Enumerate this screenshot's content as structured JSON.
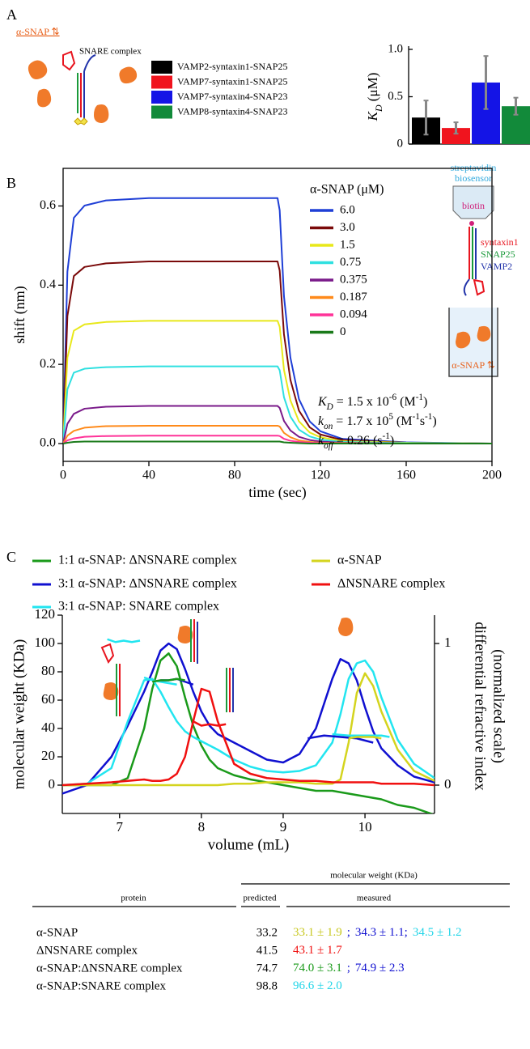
{
  "panels": [
    "A",
    "B",
    "C"
  ],
  "schematic_a": {
    "label": "α-SNAP ⇅",
    "complex": "SNARE complex"
  },
  "diagram_b": {
    "sensor": [
      "streptavidin",
      "biosensor"
    ],
    "biotin": "biotin",
    "proteins": [
      "syntaxin1",
      "SNAP25",
      "VAMP2"
    ],
    "protein_colors": [
      "#e8141e",
      "#1a9a3a",
      "#2233aa"
    ],
    "label": "α-SNAP ⇅"
  },
  "chart_data": [
    {
      "type": "bar",
      "y_label": [
        "K",
        "D",
        " (μM)"
      ],
      "categories": [
        null
      ],
      "series": [
        {
          "name": "VAMP2-syntaxin1-SNAP25",
          "color": "#000000",
          "values": [
            0.28
          ],
          "errors": [
            0.18
          ]
        },
        {
          "name": "VAMP7-syntaxin1-SNAP25",
          "color": "#f0141e",
          "values": [
            0.17
          ],
          "errors": [
            0.06
          ]
        },
        {
          "name": "VAMP7-syntaxin4-SNAP23",
          "color": "#1414e6",
          "values": [
            0.65
          ],
          "errors": [
            0.28
          ]
        },
        {
          "name": "VAMP8-syntaxin4-SNAP23",
          "color": "#128a3a",
          "values": [
            0.4
          ],
          "errors": [
            0.09
          ]
        }
      ],
      "error_color": "#888888",
      "ylim": [
        0,
        1.0
      ],
      "yticks": [
        0,
        0.5,
        {
          "value": 1.0,
          "label": "1.0"
        }
      ]
    },
    {
      "type": "line",
      "x_label": "time (sec)",
      "y_label": "shift (nm)",
      "legend_title": "α-SNAP (μM)",
      "x": [
        0,
        2,
        5,
        10,
        20,
        40,
        60,
        80,
        100,
        101,
        103,
        106,
        110,
        115,
        120,
        130,
        160,
        200
      ],
      "series": [
        {
          "name": "6.0",
          "color": "#1f3fd6",
          "values": [
            0,
            0.434,
            0.57,
            0.601,
            0.614,
            0.62,
            0.62,
            0.62,
            0.62,
            0.589,
            0.372,
            0.217,
            0.112,
            0.056,
            0.031,
            0.012,
            0.003,
            0
          ]
        },
        {
          "name": "3.0",
          "color": "#7a0a0a",
          "values": [
            0,
            0.322,
            0.423,
            0.446,
            0.455,
            0.46,
            0.46,
            0.46,
            0.46,
            0.437,
            0.276,
            0.161,
            0.083,
            0.041,
            0.023,
            0.009,
            0.002,
            0
          ]
        },
        {
          "name": "1.5",
          "color": "#e8e81a",
          "values": [
            0,
            0.217,
            0.285,
            0.301,
            0.307,
            0.31,
            0.31,
            0.31,
            0.31,
            0.295,
            0.186,
            0.109,
            0.056,
            0.028,
            0.016,
            0.006,
            0.002,
            0
          ]
        },
        {
          "name": "0.75",
          "color": "#2fe0e0",
          "values": [
            0,
            0.137,
            0.179,
            0.189,
            0.193,
            0.195,
            0.195,
            0.195,
            0.195,
            0.185,
            0.117,
            0.068,
            0.035,
            0.018,
            0.01,
            0.004,
            0.001,
            0
          ]
        },
        {
          "name": "0.375",
          "color": "#7a1a8a",
          "values": [
            0,
            0.05,
            0.075,
            0.088,
            0.093,
            0.095,
            0.095,
            0.095,
            0.095,
            0.09,
            0.057,
            0.033,
            0.017,
            0.009,
            0.005,
            0.002,
            0,
            0
          ]
        },
        {
          "name": "0.187",
          "color": "#ff8a1a",
          "values": [
            0,
            0.02,
            0.032,
            0.04,
            0.044,
            0.045,
            0.045,
            0.045,
            0.045,
            0.043,
            0.027,
            0.016,
            0.008,
            0.004,
            0.002,
            0.001,
            0,
            0
          ]
        },
        {
          "name": "0.094",
          "color": "#ff3399",
          "values": [
            0,
            0.008,
            0.013,
            0.017,
            0.019,
            0.02,
            0.02,
            0.02,
            0.02,
            0.019,
            0.012,
            0.007,
            0.004,
            0.002,
            0.001,
            0,
            0,
            0
          ]
        },
        {
          "name": "0",
          "color": "#1a7a1a",
          "values": [
            0,
            0.002,
            0.004,
            0.005,
            0.005,
            0.005,
            0.005,
            0.005,
            0.005,
            0.005,
            0.003,
            0.002,
            0.001,
            0,
            0,
            0,
            0,
            0
          ]
        }
      ],
      "annotations": [
        [
          "K",
          "D",
          " = 1.5 x 10",
          "-6",
          " (M",
          "-1",
          ")"
        ],
        [
          "k",
          "on",
          " = 1.7 x 10",
          "5",
          " (M",
          "-1",
          "s",
          "-1",
          ")"
        ],
        [
          "k",
          "off",
          " = 0.26 (s",
          "-1",
          ")"
        ]
      ],
      "xlim": [
        0,
        200
      ],
      "xticks": [
        0,
        40,
        80,
        120,
        160,
        200
      ],
      "ylim": [
        -0.045,
        0.695
      ],
      "yticks": [
        {
          "value": 0,
          "label": "0.0"
        },
        0.2,
        0.4,
        0.6
      ]
    },
    {
      "type": "line",
      "x_label": "volume (mL)",
      "y_label": "molecular weight (KDa)",
      "y2_label": [
        "differential refractive index",
        "(normalized scale)"
      ],
      "x": [
        6.3,
        6.6,
        6.9,
        7.1,
        7.3,
        7.4,
        7.5,
        7.6,
        7.7,
        7.8,
        7.9,
        8.0,
        8.1,
        8.2,
        8.4,
        8.6,
        8.8,
        9.0,
        9.2,
        9.4,
        9.6,
        9.7,
        9.8,
        9.9,
        10.0,
        10.1,
        10.2,
        10.4,
        10.6,
        10.85
      ],
      "series": [
        {
          "name": "1:1 α-SNAP: ΔNSNARE complex",
          "color": "#1a9a1a",
          "axis": "y2",
          "values": [
            0,
            0,
            0,
            0.05,
            0.4,
            0.68,
            0.88,
            0.93,
            0.84,
            0.62,
            0.42,
            0.28,
            0.18,
            0.12,
            0.07,
            0.04,
            0.02,
            0,
            -0.02,
            -0.04,
            -0.04,
            -0.05,
            -0.06,
            -0.07,
            -0.08,
            -0.09,
            -0.1,
            -0.14,
            -0.16,
            -0.21
          ]
        },
        {
          "name": "3:1 α-SNAP: ΔNSNARE complex",
          "color": "#1010d0",
          "axis": "y2",
          "values": [
            -0.06,
            0.0,
            0.2,
            0.42,
            0.66,
            0.8,
            0.95,
            1.0,
            0.96,
            0.82,
            0.66,
            0.52,
            0.42,
            0.36,
            0.3,
            0.24,
            0.18,
            0.16,
            0.22,
            0.4,
            0.75,
            0.89,
            0.86,
            0.74,
            0.55,
            0.38,
            0.26,
            0.14,
            0.06,
            0.02
          ]
        },
        {
          "name": "3:1 α-SNAP: SNARE complex",
          "color": "#22e5f0",
          "axis": "y2",
          "values": [
            0,
            0.01,
            0.12,
            0.45,
            0.74,
            0.75,
            0.66,
            0.55,
            0.45,
            0.38,
            0.34,
            0.31,
            0.28,
            0.25,
            0.18,
            0.13,
            0.1,
            0.09,
            0.1,
            0.14,
            0.3,
            0.5,
            0.75,
            0.86,
            0.88,
            0.8,
            0.62,
            0.32,
            0.15,
            0.05
          ]
        },
        {
          "name": "α-SNAP",
          "color": "#d4d41e",
          "axis": "y2",
          "values": [
            0,
            0,
            0,
            0,
            0,
            0,
            0,
            0,
            0,
            0,
            0,
            0,
            0,
            0,
            0.01,
            0.01,
            0.02,
            0.02,
            0.02,
            0.01,
            0.01,
            0.04,
            0.3,
            0.65,
            0.79,
            0.7,
            0.52,
            0.25,
            0.1,
            0.03
          ]
        },
        {
          "name": "ΔNSNARE complex",
          "color": "#f01010",
          "axis": "y2",
          "values": [
            0,
            0.01,
            0.02,
            0.03,
            0.04,
            0.03,
            0.03,
            0.04,
            0.08,
            0.2,
            0.45,
            0.68,
            0.66,
            0.45,
            0.15,
            0.08,
            0.05,
            0.04,
            0.03,
            0.03,
            0.02,
            0.02,
            0.02,
            0.02,
            0.02,
            0.02,
            0.01,
            0.01,
            0.01,
            0
          ]
        },
        {
          "color": "#22e5f0",
          "x": [
            6.85,
            6.95,
            7.05,
            7.15,
            7.25
          ],
          "values": [
            103,
            101,
            102,
            101,
            102
          ]
        },
        {
          "color": "#22e5f0",
          "x": [
            7.3,
            7.4,
            7.5,
            7.6,
            7.7
          ],
          "values": [
            76,
            74,
            73,
            72,
            71
          ]
        },
        {
          "color": "#22e5f0",
          "x": [
            9.6,
            9.8,
            10.0,
            10.2,
            10.3
          ],
          "values": [
            36,
            35,
            35,
            35,
            34
          ]
        },
        {
          "color": "#1010d0",
          "x": [
            7.5,
            7.6,
            7.7,
            7.8,
            7.9
          ],
          "values": [
            74,
            74,
            75,
            73,
            71
          ]
        },
        {
          "color": "#1010d0",
          "x": [
            9.3,
            9.5,
            9.7,
            9.9,
            10.1
          ],
          "values": [
            33,
            35,
            34,
            33,
            30
          ]
        },
        {
          "color": "#1a9a1a",
          "x": [
            7.4,
            7.5,
            7.6,
            7.7,
            7.8
          ],
          "values": [
            73,
            74,
            74,
            75,
            74
          ]
        },
        {
          "color": "#d4d41e",
          "x": [
            9.8,
            9.9,
            10.0,
            10.1,
            10.2
          ],
          "values": [
            33,
            34,
            34,
            34,
            33
          ]
        },
        {
          "color": "#f01010",
          "x": [
            7.9,
            8.0,
            8.1,
            8.2,
            8.3
          ],
          "values": [
            45,
            42,
            43,
            42,
            43
          ]
        }
      ],
      "xlim": [
        6.3,
        10.85
      ],
      "xticks": [
        7,
        8,
        9,
        10
      ],
      "ylim": [
        -20,
        120
      ],
      "yticks": [
        0,
        20,
        40,
        60,
        80,
        100,
        120
      ],
      "y2lim": [
        -0.2,
        1.2
      ],
      "y2ticks": [
        0,
        1
      ]
    }
  ],
  "table": {
    "group_header": "molecular weight (KDa)",
    "columns": [
      "protein",
      "predicted",
      "measured"
    ],
    "rows": [
      {
        "protein": "α-SNAP",
        "predicted": 33.2,
        "measured": [
          {
            "text": "33.1 ± 1.9",
            "color": "#c8c820"
          },
          {
            "text": ";",
            "color": "#1010d0"
          },
          {
            "text": "34.3 ± 1.1;",
            "color": "#1010d0"
          },
          {
            "text": "34.5 ± 1.2",
            "color": "#22d5e8"
          }
        ]
      },
      {
        "protein": "ΔNSNARE complex",
        "predicted": 41.5,
        "measured": [
          {
            "text": "43.1 ± 1.7",
            "color": "#f01010"
          }
        ]
      },
      {
        "protein": "α-SNAP:ΔNSNARE complex",
        "predicted": 74.7,
        "measured": [
          {
            "text": "74.0 ± 3.1",
            "color": "#1a9a1a"
          },
          {
            "text": ";",
            "color": "#1010d0"
          },
          {
            "text": "74.9 ± 2.3",
            "color": "#1010d0"
          }
        ]
      },
      {
        "protein": "α-SNAP:SNARE complex",
        "predicted": 98.8,
        "measured": [
          {
            "text": "96.6 ± 2.0",
            "color": "#22d5e8"
          }
        ]
      }
    ]
  }
}
